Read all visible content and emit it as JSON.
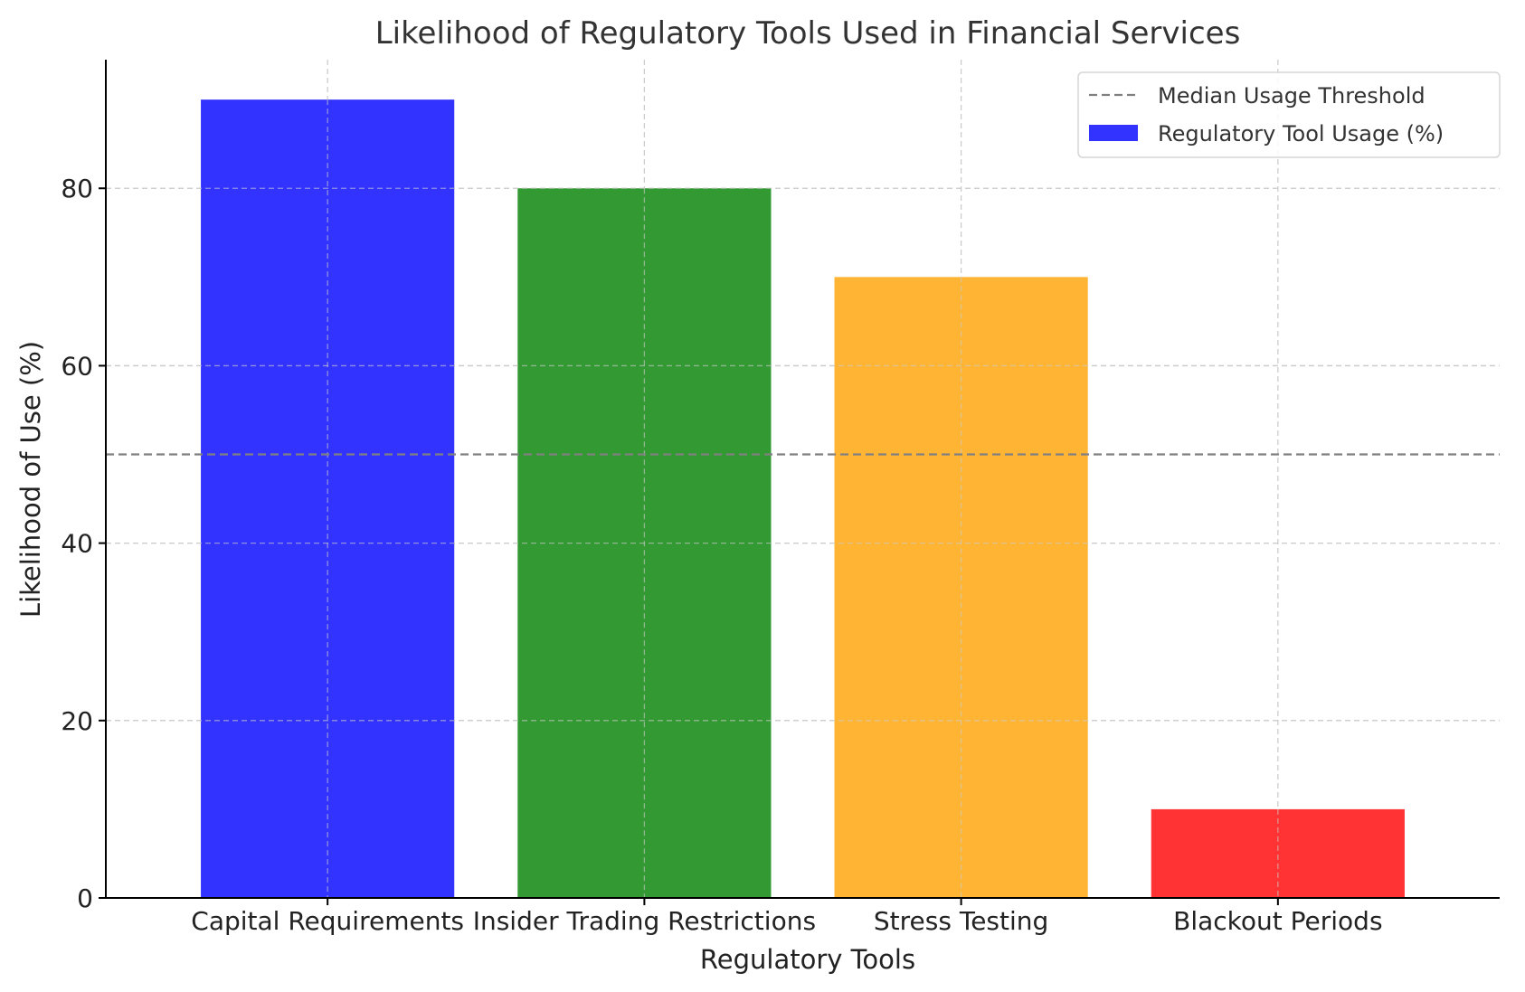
{
  "chart_data": {
    "type": "bar",
    "title": "Likelihood of Regulatory Tools Used in Financial Services",
    "xlabel": "Regulatory Tools",
    "ylabel": "Likelihood of Use (%)",
    "categories": [
      "Capital Requirements",
      "Insider Trading Restrictions",
      "Stress Testing",
      "Blackout Periods"
    ],
    "values": [
      90,
      80,
      70,
      10
    ],
    "colors": [
      "#3333ff",
      "#339933",
      "#ffb533",
      "#ff3333"
    ],
    "ylim": [
      0,
      94.5
    ],
    "yticks": [
      0,
      20,
      40,
      60,
      80
    ],
    "grid": true,
    "threshold": {
      "name": "Median Usage Threshold",
      "value": 50,
      "color": "#808080"
    },
    "legend": {
      "placement": "top-right",
      "entries": [
        {
          "label": "Median Usage Threshold",
          "kind": "dashed-line",
          "color": "#808080"
        },
        {
          "label": "Regulatory Tool Usage (%)",
          "kind": "patch",
          "color": "#3333ff"
        }
      ]
    }
  }
}
